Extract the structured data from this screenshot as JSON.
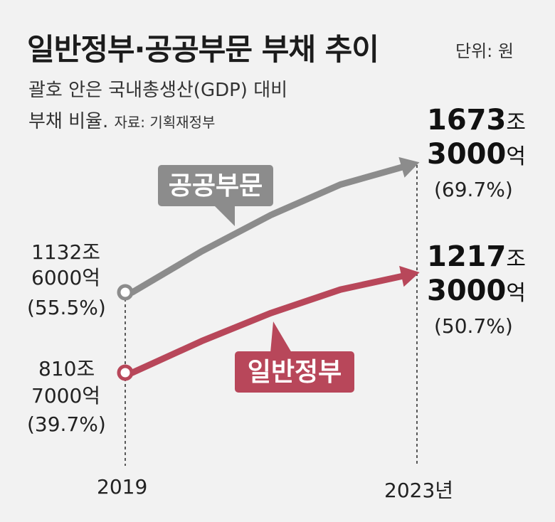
{
  "title": "일반정부·공공부문 부채 추이",
  "unit": "단위: 원",
  "subtitle_line1": "괄호 안은 국내총생산(GDP) 대비",
  "subtitle_line2": "부채 비율.",
  "source": "자료: 기획재정부",
  "colors": {
    "public": "#8c8c8c",
    "general": "#b8475a",
    "background": "#f2f2f2"
  },
  "chart_data": {
    "type": "line",
    "title": "일반정부·공공부문 부채 추이",
    "x": [
      "2019",
      "2023년"
    ],
    "series": [
      {
        "name": "공공부문",
        "values": [
          1132.6,
          1673.3
        ],
        "value_unit": "조 원",
        "labels": [
          {
            "amount_line1": "1132조",
            "amount_line2": "6000억",
            "ratio": "(55.5%)"
          },
          {
            "amount_main1": "1673",
            "amount_suffix1": "조",
            "amount_main2": "3000",
            "amount_suffix2": "억",
            "ratio": "(69.7%)"
          }
        ]
      },
      {
        "name": "일반정부",
        "values": [
          810.7,
          1217.3
        ],
        "value_unit": "조 원",
        "labels": [
          {
            "amount_line1": "810조",
            "amount_line2": "7000억",
            "ratio": "(39.7%)"
          },
          {
            "amount_main1": "1217",
            "amount_suffix1": "조",
            "amount_main2": "3000",
            "amount_suffix2": "억",
            "ratio": "(50.7%)"
          }
        ]
      }
    ],
    "gdp_ratio_percent": {
      "공공부문": [
        55.5,
        69.7
      ],
      "일반정부": [
        39.7,
        50.7
      ]
    }
  }
}
